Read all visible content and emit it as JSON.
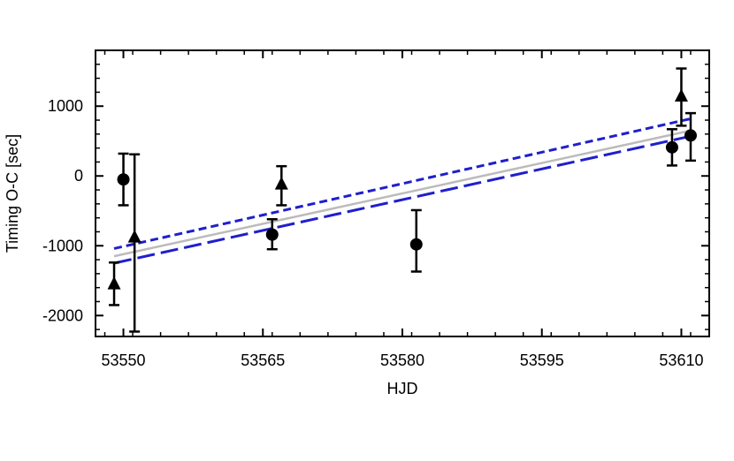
{
  "chart_data": {
    "type": "scatter",
    "xlabel": "HJD",
    "ylabel": "Timing O-C  [sec]",
    "xlim": [
      53547,
      53613
    ],
    "ylim": [
      -2300,
      1800
    ],
    "x_ticks": [
      53550,
      53565,
      53580,
      53595,
      53610
    ],
    "x_tick_labels": [
      "53550",
      "53565",
      "53580",
      "53595",
      "53610"
    ],
    "y_ticks": [
      -2000,
      -1000,
      0,
      1000
    ],
    "y_tick_labels": [
      "-2000",
      "-1000",
      "0",
      "1000"
    ],
    "grid": false,
    "series": [
      {
        "marker": "circle",
        "color": "#000000",
        "points": [
          {
            "x": 53550.0,
            "y": -50,
            "err_low": -420,
            "err_high": 320
          },
          {
            "x": 53566.0,
            "y": -840,
            "err_low": -1050,
            "err_high": -620
          },
          {
            "x": 53581.5,
            "y": -980,
            "err_low": -1370,
            "err_high": -490
          },
          {
            "x": 53609.0,
            "y": 410,
            "err_low": 150,
            "err_high": 670
          },
          {
            "x": 53611.0,
            "y": 580,
            "err_low": 220,
            "err_high": 900
          }
        ]
      },
      {
        "marker": "triangle",
        "color": "#000000",
        "points": [
          {
            "x": 53549.0,
            "y": -1550,
            "err_low": -1850,
            "err_high": -1240
          },
          {
            "x": 53551.2,
            "y": -880,
            "err_low": -2230,
            "err_high": 310
          },
          {
            "x": 53567.0,
            "y": -120,
            "err_low": -420,
            "err_high": 140
          },
          {
            "x": 53610.0,
            "y": 1140,
            "err_low": 720,
            "err_high": 1540
          }
        ]
      }
    ],
    "lines": [
      {
        "style": "solid",
        "color": "#bbbbbb",
        "x": [
          53549.0,
          53611.0
        ],
        "y": [
          -1150,
          650
        ]
      },
      {
        "style": "short-dash",
        "color": "#1f1fcc",
        "x": [
          53549.0,
          53611.0
        ],
        "y": [
          -1040,
          820
        ]
      },
      {
        "style": "long-dash",
        "color": "#1f1fcc",
        "x": [
          53549.0,
          53611.0
        ],
        "y": [
          -1250,
          570
        ]
      }
    ]
  }
}
